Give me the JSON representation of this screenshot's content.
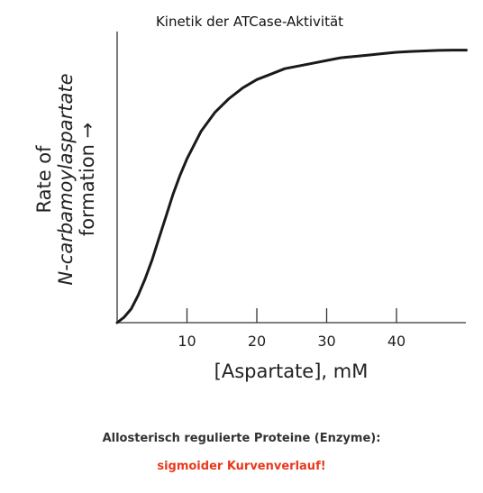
{
  "chart_data": {
    "type": "line",
    "title": "Kinetik der ATCase-Aktivität",
    "xlabel": "[Aspartate], mM",
    "ylabel_lines": [
      "Rate of",
      "N-carbamoylaspartate",
      "formation →"
    ],
    "x_ticks": [
      10,
      20,
      30,
      40
    ],
    "xlim": [
      0,
      50
    ],
    "ylim": [
      0,
      1
    ],
    "y_ticks": [],
    "grid": false,
    "series": [
      {
        "x": [
          0,
          1,
          2,
          3,
          4,
          5,
          6,
          7,
          8,
          9,
          10,
          12,
          14,
          16,
          18,
          20,
          22,
          24,
          26,
          28,
          30,
          32,
          34,
          36,
          38,
          40,
          42,
          44,
          46,
          48,
          50
        ],
        "y": [
          0,
          0.02,
          0.05,
          0.1,
          0.16,
          0.23,
          0.31,
          0.39,
          0.47,
          0.54,
          0.6,
          0.7,
          0.77,
          0.82,
          0.86,
          0.89,
          0.91,
          0.93,
          0.94,
          0.95,
          0.96,
          0.97,
          0.975,
          0.98,
          0.985,
          0.99,
          0.993,
          0.995,
          0.997,
          0.998,
          0.998
        ]
      }
    ],
    "line_color": "#1a1a1a"
  },
  "captions": {
    "line1": "Allosterisch regulierte Proteine (Enzyme):",
    "line2": "sigmoider Kurvenverlauf!",
    "line2_color": "#e8391d"
  }
}
